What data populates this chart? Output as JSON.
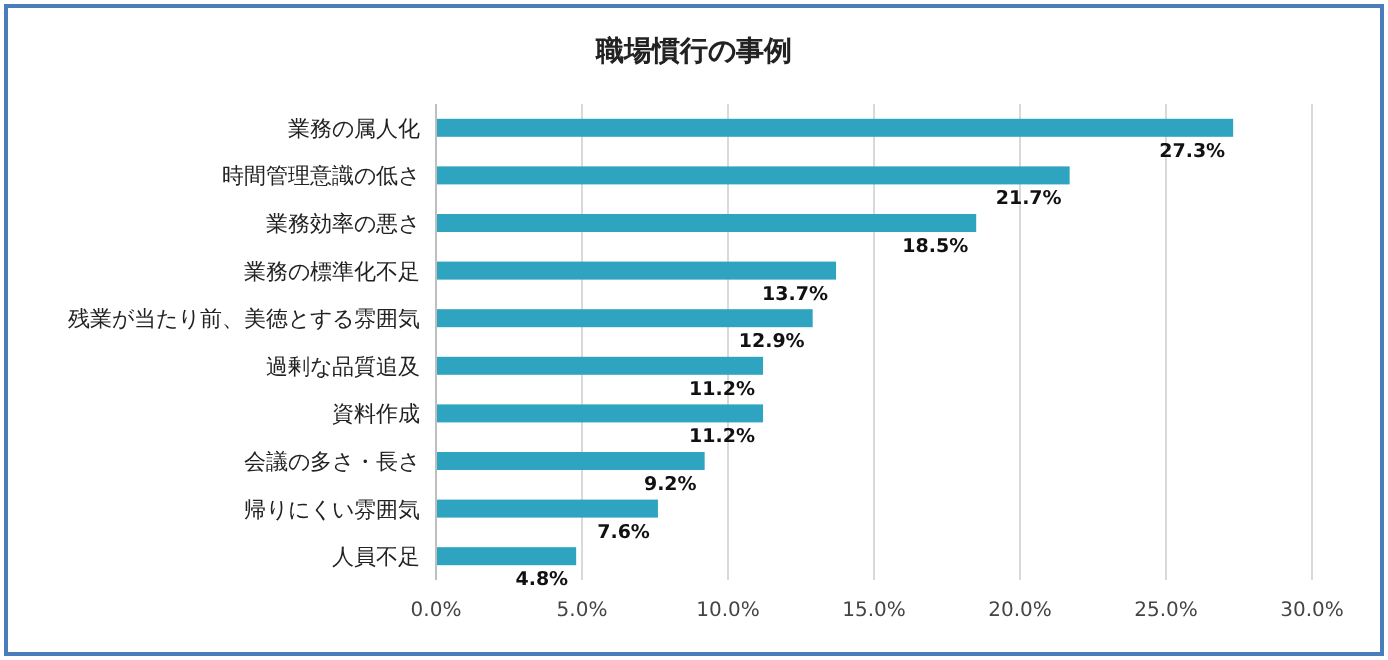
{
  "chart_data": {
    "type": "bar",
    "orientation": "horizontal",
    "title": "職場慣行の事例",
    "categories": [
      "業務の属人化",
      "時間管理意識の低さ",
      "業務効率の悪さ",
      "業務の標準化不足",
      "残業が当たり前、美徳とする雰囲気",
      "過剰な品質追及",
      "資料作成",
      "会議の多さ・長さ",
      "帰りにくい雰囲気",
      "人員不足"
    ],
    "values": [
      27.3,
      21.7,
      18.5,
      13.7,
      12.9,
      11.2,
      11.2,
      9.2,
      7.6,
      4.8
    ],
    "value_labels": [
      "27.3%",
      "21.7%",
      "18.5%",
      "13.7%",
      "12.9%",
      "11.2%",
      "11.2%",
      "9.2%",
      "7.6%",
      "4.8%"
    ],
    "color": "#2ea4c0",
    "xlim": [
      0,
      30
    ],
    "xticks": [
      {
        "value": 0,
        "label": "0.0%"
      },
      {
        "value": 5,
        "label": "5.0%"
      },
      {
        "value": 10,
        "label": "10.0%"
      },
      {
        "value": 15,
        "label": "15.0%"
      },
      {
        "value": 20,
        "label": "20.0%"
      },
      {
        "value": 25,
        "label": "25.0%"
      },
      {
        "value": 30,
        "label": "30.0%"
      }
    ],
    "grid": "x"
  }
}
